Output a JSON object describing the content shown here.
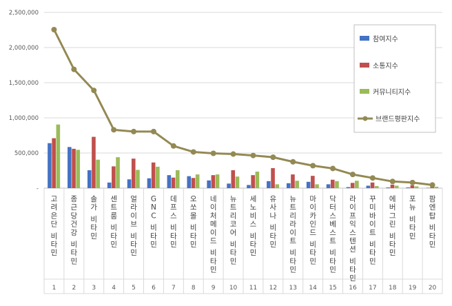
{
  "chart_data": {
    "type": "bar",
    "categories": [
      "고려은단 비타민",
      "종근당건강 비타민",
      "솔가 비타민",
      "센트룸 비타민",
      "얼라이브 비타민",
      "GNC 비타민",
      "데프스 비타민",
      "오쏘몰 비타민",
      "네이처메이드 비타민",
      "뉴트리코어 비타민",
      "세노비스 비타민",
      "유사나 비타민",
      "뉴트리라이트 비타민",
      "마이카인드 비타민",
      "닥터스베스트 비타민",
      "라이프익스텐션 비타민",
      "꾸미바이트 비타민",
      "에버그린 비타민",
      "포뉴 비타민",
      "팜엔탑 비타민"
    ],
    "ranks": [
      "1",
      "2",
      "3",
      "4",
      "5",
      "6",
      "7",
      "8",
      "9",
      "10",
      "11",
      "12",
      "13",
      "14",
      "15",
      "16",
      "17",
      "18",
      "19",
      "20"
    ],
    "series": [
      {
        "name": "참여지수",
        "color": "#4472C4",
        "kind": "bar",
        "values": [
          640000,
          585000,
          255000,
          80000,
          125000,
          140000,
          185000,
          170000,
          110000,
          65000,
          45000,
          100000,
          70000,
          90000,
          55000,
          15000,
          35000,
          10000,
          10000,
          5000
        ]
      },
      {
        "name": "소통지수",
        "color": "#C0504D",
        "kind": "bar",
        "values": [
          710000,
          560000,
          730000,
          310000,
          420000,
          365000,
          150000,
          145000,
          185000,
          255000,
          185000,
          285000,
          195000,
          175000,
          120000,
          75000,
          80000,
          50000,
          40000,
          20000
        ]
      },
      {
        "name": "커뮤니티지수",
        "color": "#9BBB59",
        "kind": "bar",
        "values": [
          905000,
          545000,
          405000,
          440000,
          260000,
          305000,
          255000,
          195000,
          195000,
          165000,
          235000,
          55000,
          105000,
          55000,
          100000,
          105000,
          30000,
          35000,
          25000,
          20000
        ]
      },
      {
        "name": "브랜드평판지수",
        "color": "#938953",
        "kind": "line",
        "values": [
          2255000,
          1690000,
          1390000,
          830000,
          805000,
          805000,
          600000,
          515000,
          495000,
          485000,
          465000,
          440000,
          375000,
          320000,
          280000,
          195000,
          145000,
          95000,
          80000,
          45000
        ]
      }
    ],
    "yticks": [
      "-",
      "500,000",
      "1,000,000",
      "1,500,000",
      "2,000,000",
      "2,500,000"
    ],
    "ylim": [
      0,
      2500000
    ],
    "legend_position": "right",
    "grid": true
  }
}
